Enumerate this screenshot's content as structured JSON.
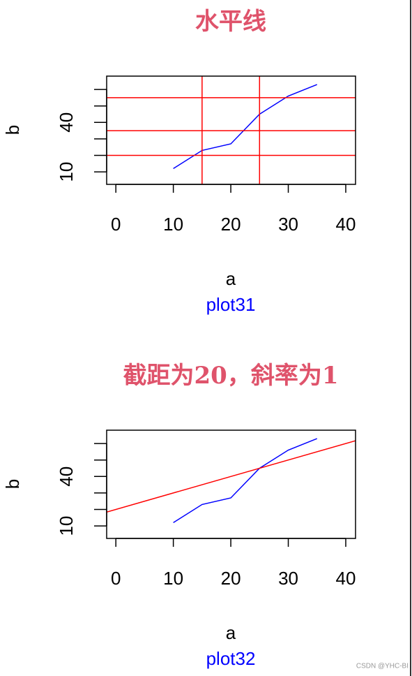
{
  "charts": [
    {
      "chart_data": {
        "type": "line",
        "title": "水平线",
        "xlabel": "a",
        "ylabel": "b",
        "subtitle": "plot31",
        "x": [
          10,
          15,
          20,
          25,
          30,
          35
        ],
        "series": [
          {
            "color": "#0000FF",
            "values": [
              12,
              23,
              27,
              45,
              56,
              63
            ]
          }
        ],
        "xlim": [
          -1.6,
          41.7
        ],
        "ylim": [
          2.4,
          68.1
        ],
        "xticks": [
          0,
          10,
          20,
          30,
          40
        ],
        "yticks": [
          10,
          40
        ],
        "yminor": [
          20,
          30,
          50,
          60
        ],
        "hlines": [
          20,
          35,
          55
        ],
        "vlines": [
          15,
          25
        ],
        "line_color": "#FF0000",
        "title_color": "#DF536B",
        "subtitle_color": "#0000FF"
      }
    },
    {
      "chart_data": {
        "type": "line",
        "title": "截距为20，斜率为1",
        "xlabel": "a",
        "ylabel": "b",
        "subtitle": "plot32",
        "x": [
          10,
          15,
          20,
          25,
          30,
          35
        ],
        "series": [
          {
            "color": "#0000FF",
            "values": [
              12,
              23,
              27,
              45,
              56,
              63
            ]
          }
        ],
        "xlim": [
          -1.6,
          41.7
        ],
        "ylim": [
          2.4,
          68.1
        ],
        "xticks": [
          0,
          10,
          20,
          30,
          40
        ],
        "yticks": [
          10,
          40
        ],
        "yminor": [
          20,
          30,
          50,
          60
        ],
        "abline": {
          "intercept": 20,
          "slope": 1
        },
        "line_color": "#FF0000",
        "title_color": "#DF536B",
        "subtitle_color": "#0000FF"
      }
    }
  ],
  "watermark": "CSDN @YHC-BI"
}
